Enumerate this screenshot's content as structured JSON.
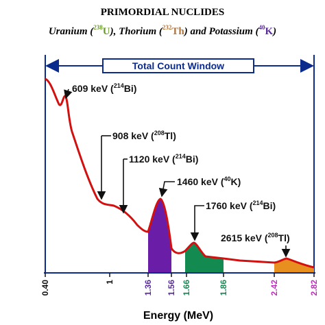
{
  "header": {
    "title": "PRIMORDIAL NUCLIDES",
    "subtitle": [
      {
        "text": "Uranium (",
        "sup": "238",
        "el": "U",
        "after": "),"
      },
      {
        "text": "Thorium (",
        "sup": "232",
        "el": "Th",
        "after": ") and"
      },
      {
        "text": "Potassium (",
        "sup": "40",
        "el": "K",
        "after": ")"
      }
    ]
  },
  "window_label": "Total Count Window",
  "peaks": [
    {
      "text": "609 keV (",
      "sup": "214",
      "after": "Bi)"
    },
    {
      "text": "908 keV (",
      "sup": "208",
      "after": "Tl)"
    },
    {
      "text": "1120 keV (",
      "sup": "214",
      "after": "Bi)"
    },
    {
      "text": "1460 keV (",
      "sup": "40",
      "after": "K)"
    },
    {
      "text": "1760 keV (",
      "sup": "214",
      "after": "Bi)"
    },
    {
      "text": "2615 keV (",
      "sup": "208",
      "after": "Tl)"
    }
  ],
  "x_ticks": [
    "0.40",
    "1",
    "1.36",
    "1.56",
    "1.66",
    "1.86",
    "2.42",
    "2.82"
  ],
  "x_label": "Energy (MeV)"
}
